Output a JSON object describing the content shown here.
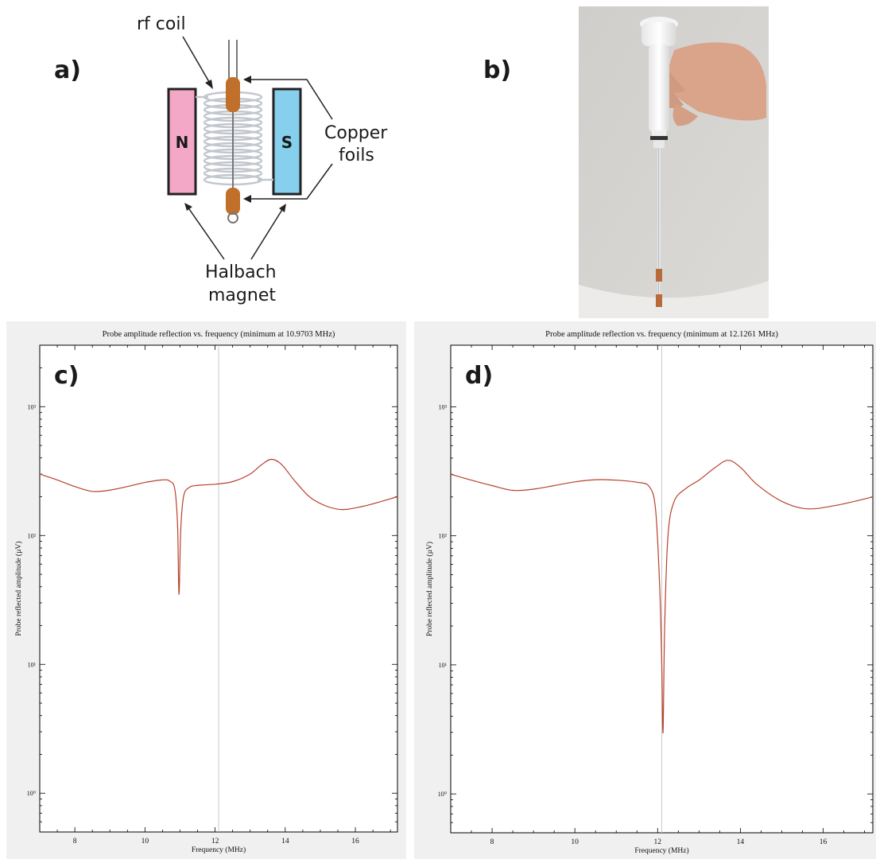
{
  "panel_a": {
    "label": "a)",
    "rf_coil": "rf coil",
    "copper_foils_line1": "Copper",
    "copper_foils_line2": "foils",
    "magnet_line1": "Halbach",
    "magnet_line2": "magnet",
    "north": "N",
    "south": "S",
    "colors": {
      "north": "#f4a8c8",
      "south": "#86d0ee",
      "copper": "#c0702a",
      "coil": "#c0c4cc"
    }
  },
  "panel_b": {
    "label": "b)"
  },
  "chart_data": [
    {
      "type": "line",
      "panel_label": "c)",
      "title": "Probe amplitude reflection vs. frequency (minimum at 10.9703 MHz)",
      "xlabel": "Frequency (MHz)",
      "ylabel": "Probe reflected amplitude (µV)",
      "xlim": [
        7,
        17.2
      ],
      "ylim": [
        0.5,
        3000
      ],
      "yscale": "log",
      "xticks": [
        8,
        10,
        12,
        14,
        16
      ],
      "yticks": [
        1,
        10,
        100,
        1000
      ],
      "ytick_labels": [
        "10⁰",
        "10¹",
        "10²",
        "10³"
      ],
      "marker_line_x": 12.1,
      "line_color": "#b8402c",
      "x": [
        7.0,
        7.5,
        8.0,
        8.5,
        9.0,
        9.5,
        10.0,
        10.5,
        10.7,
        10.85,
        10.93,
        10.97,
        11.02,
        11.1,
        11.25,
        11.5,
        12.0,
        12.5,
        13.0,
        13.3,
        13.6,
        13.9,
        14.3,
        14.8,
        15.5,
        16.2,
        17.2
      ],
      "y": [
        300,
        270,
        240,
        220,
        225,
        240,
        258,
        270,
        265,
        230,
        120,
        35,
        110,
        200,
        235,
        245,
        250,
        262,
        300,
        350,
        390,
        355,
        260,
        190,
        160,
        168,
        200
      ]
    },
    {
      "type": "line",
      "panel_label": "d)",
      "title": "Probe amplitude reflection vs. frequency (minimum at 12.1261 MHz)",
      "xlabel": "Frequency (MHz)",
      "ylabel": "Probe reflected amplitude (µV)",
      "xlim": [
        7,
        17.2
      ],
      "ylim": [
        0.5,
        3000
      ],
      "yscale": "log",
      "xticks": [
        8,
        10,
        12,
        14,
        16
      ],
      "yticks": [
        1,
        10,
        100,
        1000
      ],
      "ytick_labels": [
        "10⁰",
        "10¹",
        "10²",
        "10³"
      ],
      "marker_line_x": 12.1,
      "line_color": "#b8402c",
      "x": [
        7.0,
        7.5,
        8.0,
        8.5,
        9.0,
        9.5,
        10.0,
        10.5,
        11.0,
        11.5,
        11.8,
        11.95,
        12.05,
        12.1,
        12.13,
        12.17,
        12.25,
        12.4,
        12.7,
        13.0,
        13.4,
        13.7,
        14.0,
        14.4,
        15.0,
        15.6,
        16.3,
        17.2
      ],
      "y": [
        300,
        270,
        245,
        225,
        230,
        245,
        262,
        272,
        270,
        260,
        240,
        160,
        40,
        10,
        3,
        20,
        100,
        185,
        235,
        270,
        340,
        385,
        340,
        250,
        185,
        162,
        172,
        200
      ]
    }
  ]
}
